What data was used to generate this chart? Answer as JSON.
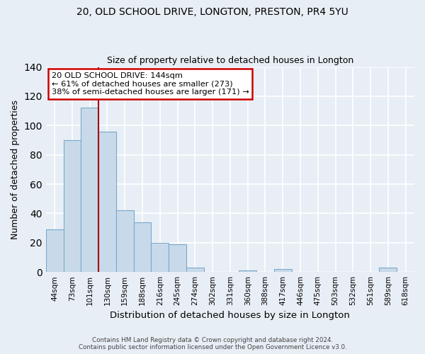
{
  "title_line1": "20, OLD SCHOOL DRIVE, LONGTON, PRESTON, PR4 5YU",
  "title_line2": "Size of property relative to detached houses in Longton",
  "xlabel": "Distribution of detached houses by size in Longton",
  "ylabel": "Number of detached properties",
  "bar_labels": [
    "44sqm",
    "73sqm",
    "101sqm",
    "130sqm",
    "159sqm",
    "188sqm",
    "216sqm",
    "245sqm",
    "274sqm",
    "302sqm",
    "331sqm",
    "360sqm",
    "388sqm",
    "417sqm",
    "446sqm",
    "475sqm",
    "503sqm",
    "532sqm",
    "561sqm",
    "589sqm",
    "618sqm"
  ],
  "bar_values": [
    29,
    90,
    112,
    96,
    42,
    34,
    20,
    19,
    3,
    0,
    0,
    1,
    0,
    2,
    0,
    0,
    0,
    0,
    0,
    3,
    0
  ],
  "bar_color": "#c8daea",
  "bar_edge_color": "#7aa8cc",
  "vline_x": 3.0,
  "vline_color": "#aa0000",
  "ylim": [
    0,
    140
  ],
  "yticks": [
    0,
    20,
    40,
    60,
    80,
    100,
    120,
    140
  ],
  "annotation_text_line1": "20 OLD SCHOOL DRIVE: 144sqm",
  "annotation_text_line2": "← 61% of detached houses are smaller (273)",
  "annotation_text_line3": "38% of semi-detached houses are larger (171) →",
  "footer_line1": "Contains HM Land Registry data © Crown copyright and database right 2024.",
  "footer_line2": "Contains public sector information licensed under the Open Government Licence v3.0.",
  "bg_color": "#e8eef5",
  "plot_bg_color": "#e8eef5",
  "grid_color": "#ffffff"
}
